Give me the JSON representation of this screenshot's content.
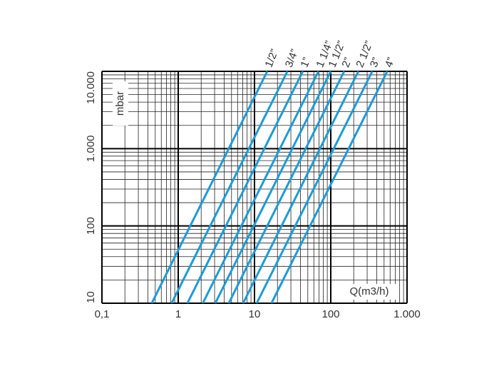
{
  "chart_data": {
    "type": "line",
    "x_label": "Q(m3/h)",
    "y_label": "mbar",
    "xscale": "log",
    "yscale": "log",
    "xlim": [
      0.1,
      1000
    ],
    "ylim": [
      10,
      10000
    ],
    "xticks": [
      {
        "value": 0.1,
        "label": "0,1"
      },
      1,
      10,
      100,
      {
        "value": 1000,
        "label": "1.000"
      }
    ],
    "yticks": [
      10,
      100,
      {
        "value": 1000,
        "label": "1.000"
      },
      {
        "value": 10000,
        "label": "10.000"
      }
    ],
    "grid": true,
    "minor_grid": true,
    "series": [
      {
        "name": "1/2”",
        "color": "#1f9ad6",
        "x": [
          0.45,
          14.7
        ],
        "values": [
          10,
          10000
        ]
      },
      {
        "name": "3/4”",
        "color": "#1f9ad6",
        "x": [
          0.82,
          27
        ],
        "values": [
          10,
          10000
        ]
      },
      {
        "name": "1”",
        "color": "#1f9ad6",
        "x": [
          1.32,
          43
        ],
        "values": [
          10,
          10000
        ]
      },
      {
        "name": "1 1/4”",
        "color": "#1f9ad6",
        "x": [
          2.1,
          69
        ],
        "values": [
          10,
          10000
        ]
      },
      {
        "name": "1 1/2”",
        "color": "#1f9ad6",
        "x": [
          3.06,
          100
        ],
        "values": [
          10,
          10000
        ]
      },
      {
        "name": "2”",
        "color": "#1f9ad6",
        "x": [
          4.6,
          150
        ],
        "values": [
          10,
          10000
        ]
      },
      {
        "name": "2 1/2”",
        "color": "#1f9ad6",
        "x": [
          7.1,
          230
        ],
        "values": [
          10,
          10000
        ]
      },
      {
        "name": "3”",
        "color": "#1f9ad6",
        "x": [
          10.7,
          350
        ],
        "values": [
          10,
          10000
        ]
      },
      {
        "name": "4”",
        "color": "#1f9ad6",
        "x": [
          16.7,
          550
        ],
        "values": [
          10,
          10000
        ]
      }
    ]
  }
}
